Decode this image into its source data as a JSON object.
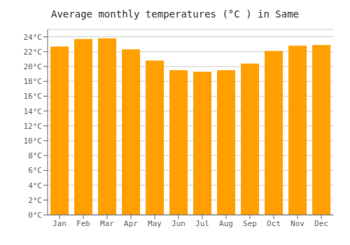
{
  "chart_data": {
    "type": "bar",
    "title": "Average monthly temperatures (°C ) in Same",
    "categories": [
      "Jan",
      "Feb",
      "Mar",
      "Apr",
      "May",
      "Jun",
      "Jul",
      "Aug",
      "Sep",
      "Oct",
      "Nov",
      "Dec"
    ],
    "values": [
      22.7,
      23.7,
      23.8,
      22.3,
      20.8,
      19.5,
      19.3,
      19.5,
      20.4,
      22.1,
      22.8,
      22.9
    ],
    "color": "#FFA000",
    "ylim": [
      0,
      25
    ],
    "yticks": [
      {
        "value": 0,
        "label": "0°C"
      },
      {
        "value": 2,
        "label": "2°C"
      },
      {
        "value": 4,
        "label": "4°C"
      },
      {
        "value": 6,
        "label": "6°C"
      },
      {
        "value": 8,
        "label": "8°C"
      },
      {
        "value": 10,
        "label": "10°C"
      },
      {
        "value": 12,
        "label": "12°C"
      },
      {
        "value": 14,
        "label": "14°C"
      },
      {
        "value": 16,
        "label": "16°C"
      },
      {
        "value": 18,
        "label": "18°C"
      },
      {
        "value": 20,
        "label": "20°C"
      },
      {
        "value": 22,
        "label": "22°C"
      },
      {
        "value": 24,
        "label": "24°C"
      }
    ],
    "grid": true
  }
}
